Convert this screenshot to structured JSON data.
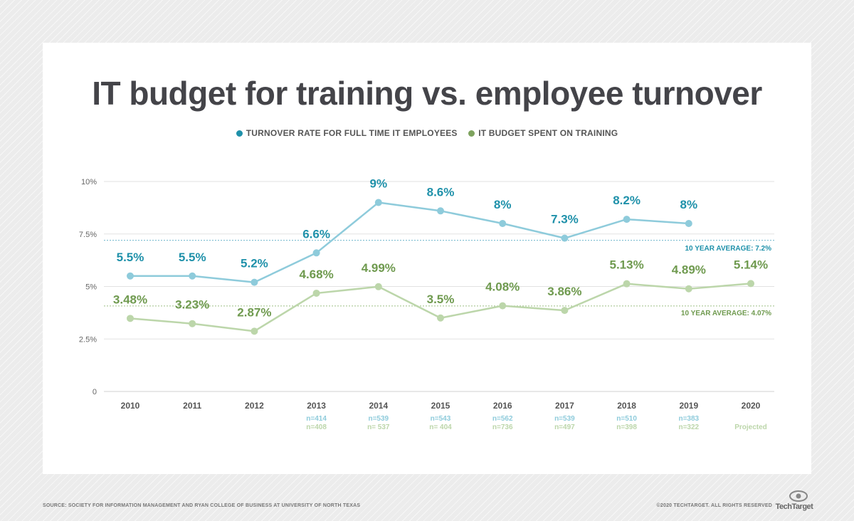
{
  "chart_data": {
    "type": "line",
    "title": "IT budget for training vs. employee turnover",
    "xlabel": "",
    "ylabel": "",
    "categories": [
      "2010",
      "2011",
      "2012",
      "2013",
      "2014",
      "2015",
      "2016",
      "2017",
      "2018",
      "2019",
      "2020"
    ],
    "ylim": [
      0,
      10
    ],
    "yticks": [
      {
        "value": 0,
        "label": "0"
      },
      {
        "value": 2.5,
        "label": "2.5%"
      },
      {
        "value": 5,
        "label": "5%"
      },
      {
        "value": 7.5,
        "label": "7.5%"
      },
      {
        "value": 10,
        "label": "10%"
      }
    ],
    "grid": true,
    "legend_position": "top-center",
    "series": [
      {
        "name": "TURNOVER RATE FOR FULL TIME IT EMPLOYEES",
        "color": "#8ecbdb",
        "label_color": "#1f91aa",
        "values": [
          5.5,
          5.5,
          5.2,
          6.6,
          9,
          8.6,
          8,
          7.3,
          8.2,
          8,
          null
        ],
        "labels": [
          "5.5%",
          "5.5%",
          "5.2%",
          "6.6%",
          "9%",
          "8.6%",
          "8%",
          "7.3%",
          "8.2%",
          "8%",
          ""
        ],
        "average": {
          "value": 7.2,
          "label": "10 YEAR AVERAGE: 7.2%"
        },
        "n": [
          "",
          "",
          "",
          "n=414",
          "n=539",
          "n=543",
          "n=562",
          "n=539",
          "n=510",
          "n=383",
          ""
        ]
      },
      {
        "name": "IT BUDGET SPENT ON TRAINING",
        "color": "#bcd6aa",
        "label_color": "#6f9a4f",
        "values": [
          3.48,
          3.23,
          2.87,
          4.68,
          4.99,
          3.5,
          4.08,
          3.86,
          5.13,
          4.89,
          5.14
        ],
        "labels": [
          "3.48%",
          "3.23%",
          "2.87%",
          "4.68%",
          "4.99%",
          "3.5%",
          "4.08%",
          "3.86%",
          "5.13%",
          "4.89%",
          "5.14%"
        ],
        "average": {
          "value": 4.07,
          "label": "10 YEAR AVERAGE: 4.07%"
        },
        "n": [
          "",
          "",
          "",
          "n=408",
          "n= 537",
          "n= 404",
          "n=736",
          "n=497",
          "n=398",
          "n=322",
          "Projected"
        ]
      }
    ]
  },
  "footer": {
    "source": "SOURCE: SOCIETY FOR INFORMATION MANAGEMENT AND RYAN COLLEGE OF BUSINESS AT UNIVERSITY OF NORTH TEXAS",
    "copyright": "©2020 TECHTARGET. ALL RIGHTS RESERVED",
    "logo_text": "TechTarget"
  },
  "colors": {
    "turnover_line": "#8ecbdb",
    "turnover_label": "#1f91aa",
    "training_line": "#bcd6aa",
    "training_label": "#6f9a4f",
    "grid": "#e2e2e2",
    "axis_text": "#666666"
  }
}
